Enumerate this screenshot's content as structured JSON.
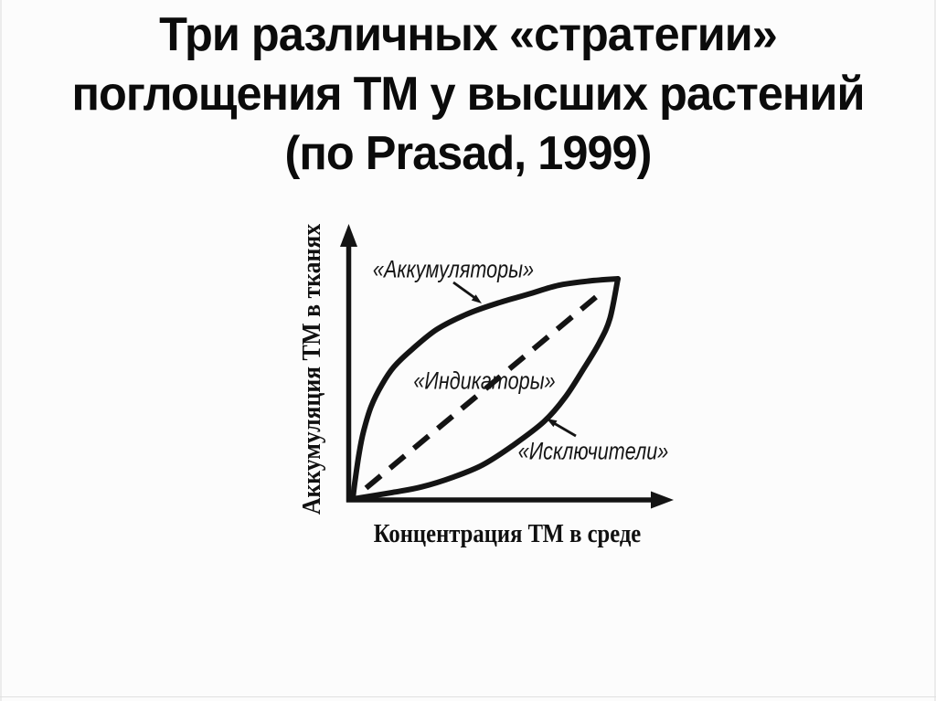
{
  "title": {
    "lines": [
      "Три различных «стратегии»",
      "поглощения ТМ у высших растений",
      "(по Prasad, 1999)"
    ]
  },
  "chart_data": {
    "type": "line",
    "title": "Три различных «стратегии» поглощения ТМ у высших растений (по Prasad, 1999)",
    "xlabel": "Концентрация ТМ в среде",
    "ylabel": "Аккумуляция ТМ в тканях",
    "xlim": [
      0,
      1
    ],
    "ylim": [
      0,
      1
    ],
    "grid": false,
    "axes_style": "conceptual axes with arrowheads, no ticks or numeric scale",
    "legend": "inline annotations; «Аккумуляторы» and «Исключители» have pointer arrows to their curves",
    "series": [
      {
        "name": "«Аккумуляторы»",
        "style": "solid",
        "shape": "concave saturating curve: rapid accumulation at low ambient concentration",
        "x": [
          0,
          0.007,
          0.024,
          0.041,
          0.069,
          0.11,
          0.155,
          0.224,
          0.317,
          0.431,
          0.548,
          0.662,
          0.776,
          0.893,
          1
        ],
        "y": [
          0,
          0.07,
          0.21,
          0.31,
          0.42,
          0.52,
          0.6,
          0.68,
          0.77,
          0.84,
          0.89,
          0.93,
          0.97,
          0.99,
          1
        ]
      },
      {
        "name": "«Индикаторы»",
        "style": "dashed",
        "shape": "straight diagonal: tissue accumulation proportional to ambient concentration",
        "x": [
          0,
          0.25,
          0.5,
          0.75,
          1
        ],
        "y": [
          0,
          0.25,
          0.5,
          0.75,
          1
        ]
      },
      {
        "name": "«Исключители»",
        "style": "solid",
        "shape": "convex excluding curve: uptake restricted until high ambient concentration",
        "x": [
          0,
          0.15,
          0.26,
          0.38,
          0.49,
          0.6,
          0.72,
          0.8,
          0.87,
          0.93,
          0.97,
          1
        ],
        "y": [
          0,
          0.03,
          0.055,
          0.1,
          0.155,
          0.24,
          0.35,
          0.46,
          0.59,
          0.71,
          0.82,
          1
        ]
      }
    ]
  }
}
